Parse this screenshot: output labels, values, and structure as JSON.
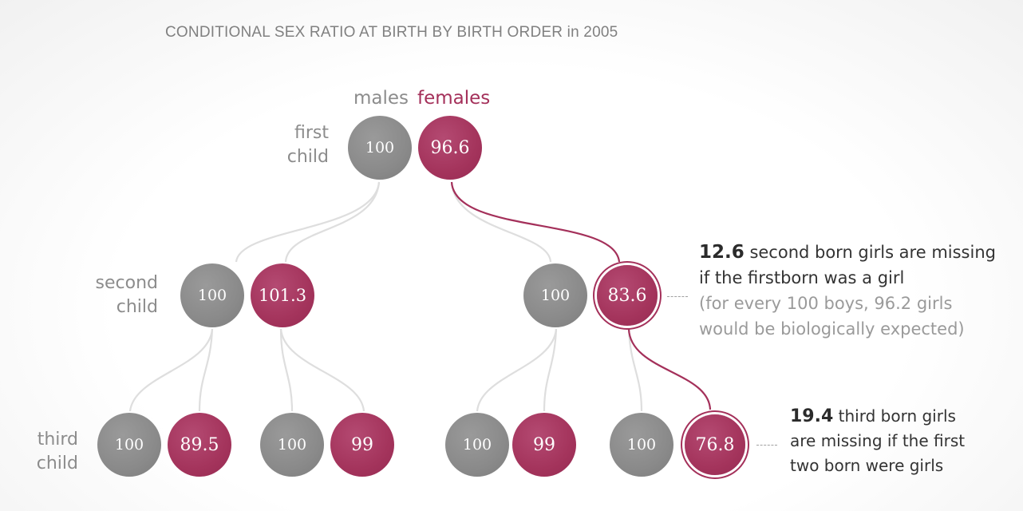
{
  "title": "CONDITIONAL SEX RATIO AT BIRTH BY BIRTH ORDER in 2005",
  "legend": {
    "males": "males",
    "females": "females"
  },
  "rows": {
    "first": [
      "first",
      "child"
    ],
    "second": [
      "second",
      "child"
    ],
    "third": [
      "third",
      "child"
    ]
  },
  "nodes": {
    "first_m": "100",
    "first_f": "96.6",
    "second_a_m": "100",
    "second_a_f": "101.3",
    "second_b_m": "100",
    "second_b_f": "83.6",
    "third_a_m": "100",
    "third_a_f": "89.5",
    "third_b_m": "100",
    "third_b_f": "99",
    "third_c_m": "100",
    "third_c_f": "99",
    "third_d_m": "100",
    "third_d_f": "76.8"
  },
  "annotations": {
    "second": {
      "number": "12.6",
      "line1": "second born girls are missing",
      "line2": "if the firstborn was a girl",
      "line3": "(for every 100 boys, 96.2 girls",
      "line4": "would be biologically expected)"
    },
    "third": {
      "number": "19.4",
      "line1": "third born girls",
      "line2": "are missing if the first",
      "line3": "two born were girls"
    }
  },
  "colors": {
    "male": "#8a8a8a",
    "female": "#a4345c",
    "highlight_line": "#a4305a",
    "connector": "#dcdcdc",
    "label": "#8c8c8c"
  }
}
